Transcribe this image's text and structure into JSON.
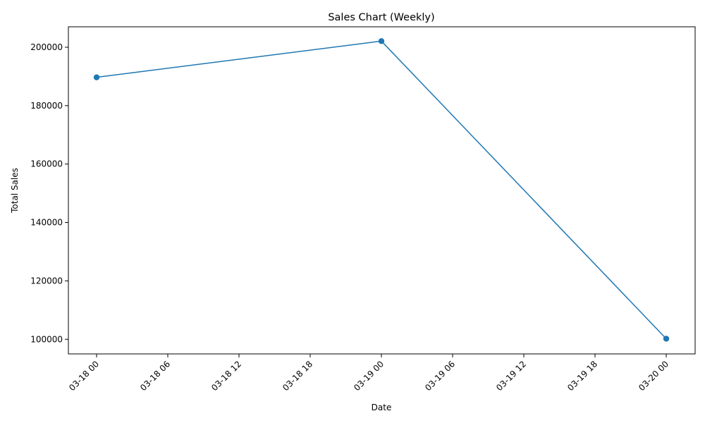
{
  "chart_data": {
    "type": "line",
    "title": "Sales Chart (Weekly)",
    "xlabel": "Date",
    "ylabel": "Total Sales",
    "x_tick_labels": [
      "03-18 00",
      "03-18 06",
      "03-18 12",
      "03-18 18",
      "03-19 00",
      "03-19 06",
      "03-19 12",
      "03-19 18",
      "03-20 00"
    ],
    "y_tick_labels": [
      "100000",
      "120000",
      "140000",
      "160000",
      "180000",
      "200000"
    ],
    "y_ticks": [
      100000,
      120000,
      140000,
      160000,
      180000,
      200000
    ],
    "ylim": [
      95000,
      207000
    ],
    "series": [
      {
        "x": [
          "03-18 00",
          "03-19 00",
          "03-20 00"
        ],
        "values": [
          189700,
          202100,
          100200
        ],
        "color": "#1f77b4",
        "marker": "circle"
      }
    ],
    "grid": false,
    "legend": "none"
  }
}
